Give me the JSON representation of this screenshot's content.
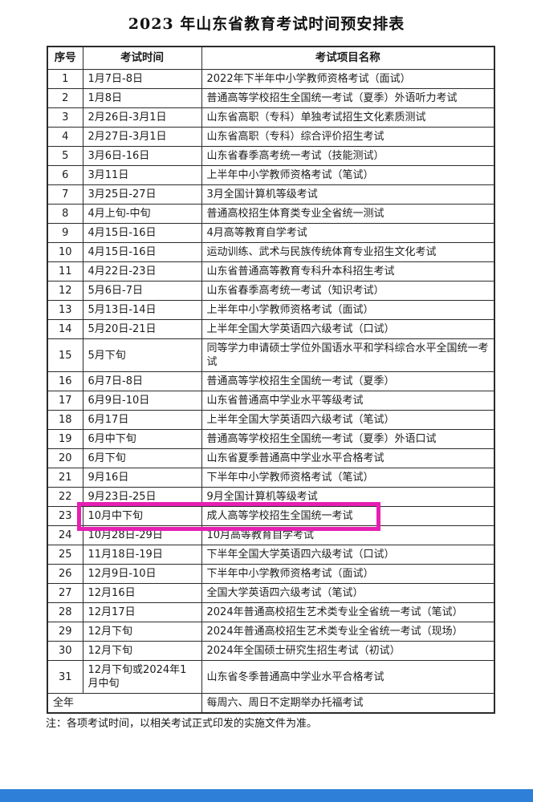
{
  "page": {
    "title": "2023 年山东省教育考试时间预安排表",
    "note": "注：各项考试时间，以相关考试正式印发的实施文件为准。"
  },
  "colors": {
    "highlight_border": "#e71fb2",
    "footer_bar": "#2e7fd7",
    "table_border": "#2b2b2b"
  },
  "table": {
    "headers": [
      "序号",
      "考试时间",
      "考试项目名称"
    ],
    "highlight_row_index": 22,
    "rows": [
      {
        "no": "1",
        "time": "1月7日-8日",
        "name": "2022年下半年中小学教师资格考试（面试）"
      },
      {
        "no": "2",
        "time": "1月8日",
        "name": "普通高等学校招生全国统一考试（夏季）外语听力考试"
      },
      {
        "no": "3",
        "time": "2月26日-3月1日",
        "name": "山东省高职（专科）单独考试招生文化素质测试"
      },
      {
        "no": "4",
        "time": "2月27日-3月1日",
        "name": "山东省高职（专科）综合评价招生考试"
      },
      {
        "no": "5",
        "time": "3月6日-16日",
        "name": "山东省春季高考统一考试（技能测试）"
      },
      {
        "no": "6",
        "time": "3月11日",
        "name": "上半年中小学教师资格考试（笔试）"
      },
      {
        "no": "7",
        "time": "3月25日-27日",
        "name": "3月全国计算机等级考试"
      },
      {
        "no": "8",
        "time": "4月上旬-中旬",
        "name": "普通高校招生体育类专业全省统一测试"
      },
      {
        "no": "9",
        "time": "4月15日-16日",
        "name": "4月高等教育自学考试"
      },
      {
        "no": "10",
        "time": "4月15日-16日",
        "name": "运动训练、武术与民族传统体育专业招生文化考试"
      },
      {
        "no": "11",
        "time": "4月22日-23日",
        "name": "山东省普通高等教育专科升本科招生考试"
      },
      {
        "no": "12",
        "time": "5月6日-7日",
        "name": "山东省春季高考统一考试（知识考试）"
      },
      {
        "no": "13",
        "time": "5月13日-14日",
        "name": "上半年中小学教师资格考试（面试）"
      },
      {
        "no": "14",
        "time": "5月20日-21日",
        "name": "上半年全国大学英语四六级考试（口试）"
      },
      {
        "no": "15",
        "time": "5月下旬",
        "name": "同等学力申请硕士学位外国语水平和学科综合水平全国统一考试"
      },
      {
        "no": "16",
        "time": "6月7日-8日",
        "name": "普通高等学校招生全国统一考试（夏季）"
      },
      {
        "no": "17",
        "time": "6月9日-10日",
        "name": "山东省普通高中学业水平等级考试"
      },
      {
        "no": "18",
        "time": "6月17日",
        "name": "上半年全国大学英语四六级考试（笔试）"
      },
      {
        "no": "19",
        "time": "6月中下旬",
        "name": "普通高等学校招生全国统一考试（夏季）外语口试"
      },
      {
        "no": "20",
        "time": "6月下旬",
        "name": "山东省夏季普通高中学业水平合格考试"
      },
      {
        "no": "21",
        "time": "9月16日",
        "name": "下半年中小学教师资格考试（笔试）"
      },
      {
        "no": "22",
        "time": "9月23日-25日",
        "name": "9月全国计算机等级考试"
      },
      {
        "no": "23",
        "time": "10月中下旬",
        "name": "成人高等学校招生全国统一考试"
      },
      {
        "no": "24",
        "time": "10月28日-29日",
        "name": "10月高等教育自学考试"
      },
      {
        "no": "25",
        "time": "11月18日-19日",
        "name": "下半年全国大学英语四六级考试（口试）"
      },
      {
        "no": "26",
        "time": "12月9日-10日",
        "name": "下半年中小学教师资格考试（面试）"
      },
      {
        "no": "27",
        "time": "12月16日",
        "name": "全国大学英语四六级考试（笔试）"
      },
      {
        "no": "28",
        "time": "12月17日",
        "name": "2024年普通高校招生艺术类专业全省统一考试（笔试）"
      },
      {
        "no": "29",
        "time": "12月下旬",
        "name": "2024年普通高校招生艺术类专业全省统一考试（现场）"
      },
      {
        "no": "30",
        "time": "12月下旬",
        "name": "2024年全国硕士研究生招生考试（初试）"
      },
      {
        "no": "31",
        "time": "12月下旬或2024年1月中旬",
        "name": "山东省冬季普通高中学业水平合格考试"
      },
      {
        "no": "全年",
        "time": "",
        "name": "每周六、周日不定期举办托福考试",
        "merge_first_two": true
      }
    ]
  }
}
